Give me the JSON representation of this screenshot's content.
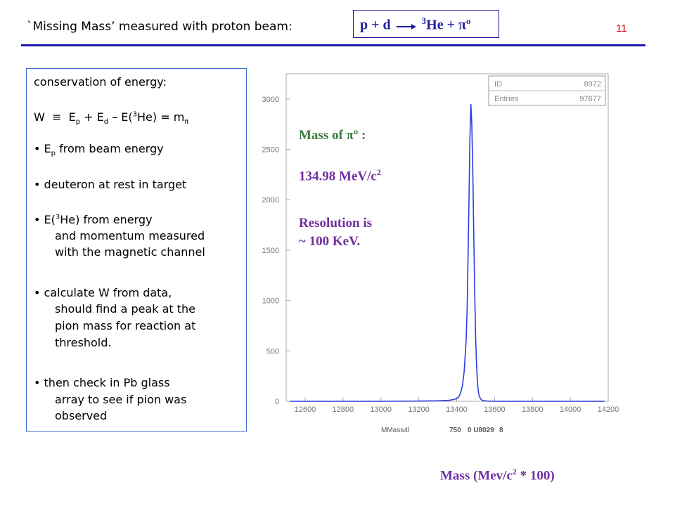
{
  "slide": {
    "header": "`Missing Mass’ measured with proton beam:",
    "reaction": {
      "lhs": "p + d",
      "rhs_sup": "3",
      "rhs": "He + πº"
    },
    "page_number": "11"
  },
  "notes": {
    "conservation_title": "conservation of energy:",
    "formula": {
      "w": "W",
      "equiv": "≡",
      "ep": "E",
      "ep_sub": "p",
      "plus1": "+ E",
      "ed_sub": "d",
      "minus": "– E(",
      "he_sup": "3",
      "he_close": "He) = m",
      "pi_sub": "π"
    },
    "bullets": [
      {
        "mark": "•",
        "text": "E",
        "sub": "p",
        "rest": " from beam energy"
      },
      {
        "mark": "•",
        "text": "deuteron at rest in target"
      },
      {
        "mark": "•",
        "text": "E(",
        "sup": "3",
        "rest": "He) from energy"
      },
      {
        "text": "and momentum measured"
      },
      {
        "text": "with the magnetic channel"
      },
      {
        "mark": "•",
        "text": "calculate W from data,"
      },
      {
        "text": "should find a peak at the"
      },
      {
        "text": "pion mass for reaction at"
      },
      {
        "text": "threshold."
      },
      {
        "mark": "•",
        "text": "then check in Pb glass"
      },
      {
        "text": "array to see if pion was"
      },
      {
        "text": "observed"
      }
    ]
  },
  "annotations": {
    "mass_label": "Mass of  πº :",
    "mass_value": "134.98 MeV/c",
    "mass_value_sup": "2",
    "resolution_line1": "Resolution is",
    "resolution_line2": "~ 100 KeV.",
    "x_title": "Mass (Mev/c",
    "x_title_sup": "2",
    "x_title_rest": " * 100)"
  },
  "colors": {
    "blue_text": "#1d1d9e",
    "green_text": "#3a7a3a",
    "purple_text": "#7030a0",
    "histogram_line": "#2a3ee0",
    "page_number": "#cc0000"
  },
  "chart_data": {
    "type": "line",
    "stats_box": {
      "rows": [
        {
          "label": "ID",
          "value": "8972"
        },
        {
          "label": "Entries",
          "value": "97677"
        }
      ]
    },
    "xlabel": "MMass4l",
    "footer": [
      "750",
      "0 U8029",
      "8"
    ],
    "xlim": [
      12500,
      14200
    ],
    "ylim": [
      0,
      3250
    ],
    "xticks": [
      12600,
      12800,
      13000,
      13200,
      13400,
      13600,
      13800,
      14000,
      14200
    ],
    "yticks": [
      0,
      500,
      1000,
      1500,
      2000,
      2500,
      3000
    ],
    "series": [
      {
        "x": [
          12520,
          13000,
          13200,
          13300,
          13360,
          13390,
          13410,
          13420,
          13430,
          13440,
          13450,
          13455,
          13460,
          13465,
          13470,
          13475,
          13480,
          13485,
          13490,
          13495,
          13500,
          13505,
          13510,
          13515,
          13520,
          13530,
          13540,
          13560,
          13600,
          14180
        ],
        "y": [
          0,
          0,
          2,
          5,
          10,
          20,
          40,
          80,
          150,
          300,
          600,
          900,
          1400,
          2000,
          2600,
          2950,
          2750,
          2300,
          1700,
          1100,
          650,
          350,
          180,
          90,
          45,
          15,
          6,
          2,
          0,
          0
        ]
      }
    ]
  }
}
